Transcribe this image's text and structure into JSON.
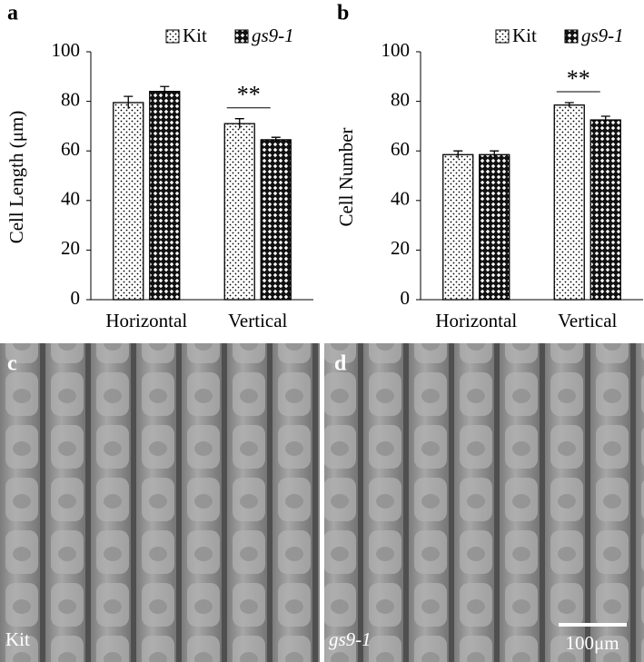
{
  "chart_data": [
    {
      "type": "bar",
      "panel": "a",
      "ylabel": "Cell Length (μm)",
      "categories": [
        "Horizontal",
        "Vertical"
      ],
      "series": [
        {
          "name": "Kit",
          "pattern": "dots",
          "values": [
            79.5,
            71
          ],
          "errors": [
            2.5,
            2
          ]
        },
        {
          "name": "gs9-1",
          "pattern": "crosshatch",
          "values": [
            84,
            64.5
          ],
          "errors": [
            2,
            1
          ]
        }
      ],
      "annotation": "**",
      "ylim": [
        0,
        100
      ],
      "yticks": [
        0,
        20,
        40,
        60,
        80,
        100
      ]
    },
    {
      "type": "bar",
      "panel": "b",
      "ylabel": "Cell Number",
      "categories": [
        "Horizontal",
        "Vertical"
      ],
      "series": [
        {
          "name": "Kit",
          "pattern": "dots",
          "values": [
            58.5,
            78.5
          ],
          "errors": [
            1.5,
            1
          ]
        },
        {
          "name": "gs9-1",
          "pattern": "crosshatch",
          "values": [
            58.5,
            72.5
          ],
          "errors": [
            1.5,
            1.5
          ]
        }
      ],
      "annotation": "**",
      "ylim": [
        0,
        100
      ],
      "yticks": [
        0,
        20,
        40,
        60,
        80,
        100
      ]
    }
  ],
  "images": [
    {
      "panel": "c",
      "label": "Kit"
    },
    {
      "panel": "d",
      "label": "gs9-1",
      "scale_bar": "100μm"
    }
  ]
}
